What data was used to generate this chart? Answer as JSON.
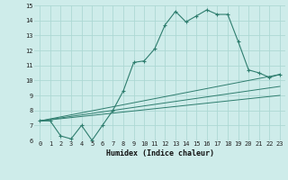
{
  "xlabel": "Humidex (Indice chaleur)",
  "ylabel": "",
  "bg_color": "#ceecea",
  "grid_color": "#add8d4",
  "line_color": "#2e7d6e",
  "xlim": [
    -0.5,
    23.5
  ],
  "ylim": [
    6,
    15
  ],
  "xticks": [
    0,
    1,
    2,
    3,
    4,
    5,
    6,
    7,
    8,
    9,
    10,
    11,
    12,
    13,
    14,
    15,
    16,
    17,
    18,
    19,
    20,
    21,
    22,
    23
  ],
  "yticks": [
    6,
    7,
    8,
    9,
    10,
    11,
    12,
    13,
    14,
    15
  ],
  "series1_x": [
    0,
    1,
    2,
    3,
    4,
    5,
    6,
    7,
    8,
    9,
    10,
    11,
    12,
    13,
    14,
    15,
    16,
    17,
    18,
    19,
    20,
    21,
    22,
    23
  ],
  "series1_y": [
    7.3,
    7.3,
    6.3,
    6.1,
    7.0,
    6.0,
    7.0,
    8.0,
    9.3,
    11.2,
    11.3,
    12.1,
    13.7,
    14.6,
    13.9,
    14.3,
    14.7,
    14.4,
    14.4,
    12.6,
    10.7,
    10.5,
    10.2,
    10.4
  ],
  "series2_x": [
    0,
    23
  ],
  "series2_y": [
    7.3,
    10.4
  ],
  "series3_x": [
    0,
    23
  ],
  "series3_y": [
    7.3,
    9.6
  ],
  "series4_x": [
    0,
    23
  ],
  "series4_y": [
    7.3,
    9.0
  ]
}
